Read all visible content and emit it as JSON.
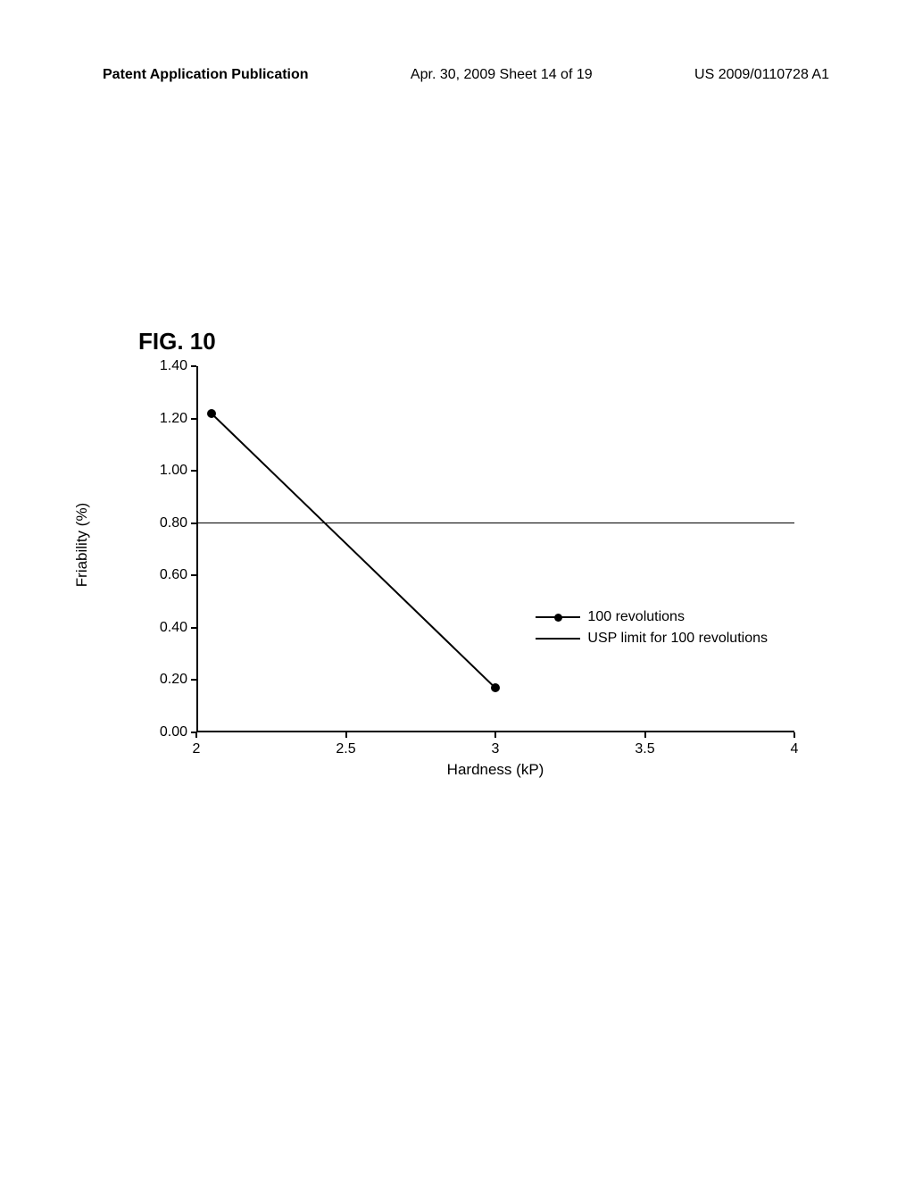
{
  "header": {
    "left": "Patent Application Publication",
    "center": "Apr. 30, 2009  Sheet 14 of 19",
    "right": "US 2009/0110728 A1"
  },
  "figure_title": "FIG. 10",
  "chart": {
    "type": "line",
    "x_label": "Hardness (kP)",
    "y_label": "Friability (%)",
    "xlim": [
      2,
      4
    ],
    "ylim": [
      0,
      1.4
    ],
    "x_ticks": [
      2,
      2.5,
      3,
      3.5,
      4
    ],
    "x_tick_labels": [
      "2",
      "2.5",
      "3",
      "3.5",
      "4"
    ],
    "y_ticks": [
      0.0,
      0.2,
      0.4,
      0.6,
      0.8,
      1.0,
      1.2,
      1.4
    ],
    "y_tick_labels": [
      "0.00",
      "0.20",
      "0.40",
      "0.60",
      "0.80",
      "1.00",
      "1.20",
      "1.40"
    ],
    "series_100_rev": {
      "x": [
        2.05,
        3.0
      ],
      "y": [
        1.22,
        0.17
      ]
    },
    "usp_limit_y": 0.8,
    "legend": {
      "series": "100 revolutions",
      "limit": "USP limit for 100 revolutions"
    },
    "line_color": "#000000",
    "marker_color": "#000000",
    "background_color": "#ffffff",
    "title_fontsize": 26,
    "label_fontsize": 17,
    "tick_fontsize": 16,
    "line_width": 2,
    "marker_size": 10
  }
}
